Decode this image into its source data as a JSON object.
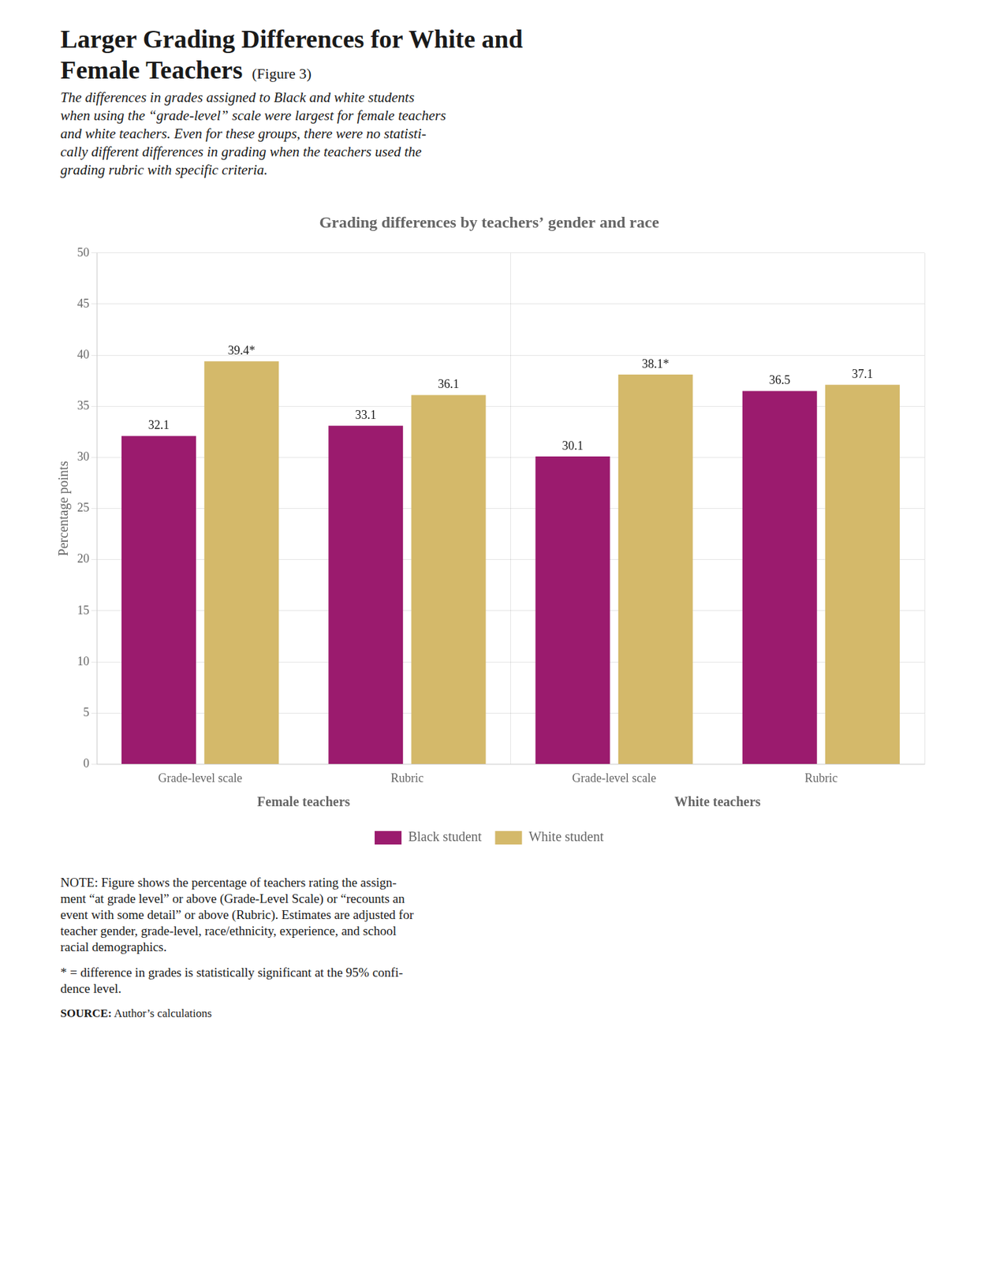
{
  "chart_data": {
    "type": "bar",
    "header_title": [
      "Larger Grading Differences for White and",
      "Female Teachers"
    ],
    "figure_label": "(Figure 3)",
    "subtitle": [
      "The differences in grades assigned to Black and white students",
      "when using the “grade-level” scale were largest for female teachers",
      "and white teachers. Even for these groups, there were no statisti-",
      "cally different differences in grading when the teachers used the",
      "grading rubric with specific criteria."
    ],
    "title": "Grading differences by teachers’ gender and race",
    "ylabel": "Percentage points",
    "categories": [
      "Grade-level scale",
      "Rubric",
      "Grade-level scale",
      "Rubric"
    ],
    "category_groups": [
      "Female teachers",
      "Female teachers",
      "White teachers",
      "White teachers"
    ],
    "series": [
      {
        "name": "Black student",
        "color": "#9B1B6E",
        "values": [
          32.1,
          33.1,
          30.1,
          36.5
        ]
      },
      {
        "name": "White student",
        "color": "#D4B96A",
        "values": [
          39.4,
          36.1,
          38.1,
          37.1
        ],
        "value_labels": [
          "39.4*",
          "36.1",
          "38.1*",
          "37.1"
        ]
      }
    ],
    "ylim": [
      0,
      50
    ],
    "yticks": [
      0,
      5,
      10,
      15,
      20,
      25,
      30,
      35,
      40,
      45,
      50
    ],
    "grid": true,
    "legend": "bottom",
    "data_labels": true,
    "notes": [
      "NOTE: Figure shows the percentage of teachers rating the assign-",
      "ment “at grade level” or above (Grade-Level Scale) or “recounts an",
      "event with some detail” or above (Rubric). Estimates are adjusted for",
      "teacher gender, grade-level, race/ethnicity, experience, and school",
      "racial demographics."
    ],
    "significance_note": [
      "* = difference in grades is statistically significant at the 95% confi-",
      "dence level."
    ],
    "source": {
      "label": "SOURCE:",
      "text": " Author’s calculations"
    }
  }
}
